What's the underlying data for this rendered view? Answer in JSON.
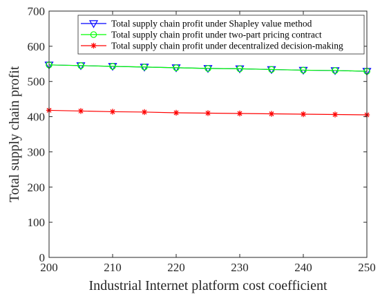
{
  "chart_data": {
    "type": "line",
    "title": "",
    "xlabel": "Industrial Internet platform cost coefficient",
    "ylabel": "Total supply chain profit",
    "xlim": [
      200,
      250
    ],
    "ylim": [
      0,
      700
    ],
    "xticks": [
      200,
      210,
      220,
      230,
      240,
      250
    ],
    "yticks": [
      0,
      100,
      200,
      300,
      400,
      500,
      600,
      700
    ],
    "grid": false,
    "legend_position": "top-right",
    "x": [
      200,
      205,
      210,
      215,
      220,
      225,
      230,
      235,
      240,
      245,
      250
    ],
    "series": [
      {
        "name": "Total supply chain profit under Shapley value method",
        "color": "#0000ff",
        "marker": "triangle-down",
        "values": [
          547,
          545,
          543,
          541,
          539,
          537,
          536,
          534,
          532,
          531,
          529
        ]
      },
      {
        "name": "Total supply chain profit under two-part pricing contract",
        "color": "#00ff00",
        "marker": "circle",
        "values": [
          547,
          545,
          543,
          541,
          539,
          537,
          536,
          534,
          532,
          531,
          529
        ]
      },
      {
        "name": "Total supply chain profit under decentralized decision-making",
        "color": "#ff0000",
        "marker": "asterisk",
        "values": [
          418,
          416,
          414,
          413,
          411,
          410,
          409,
          408,
          407,
          406,
          405
        ]
      }
    ]
  }
}
